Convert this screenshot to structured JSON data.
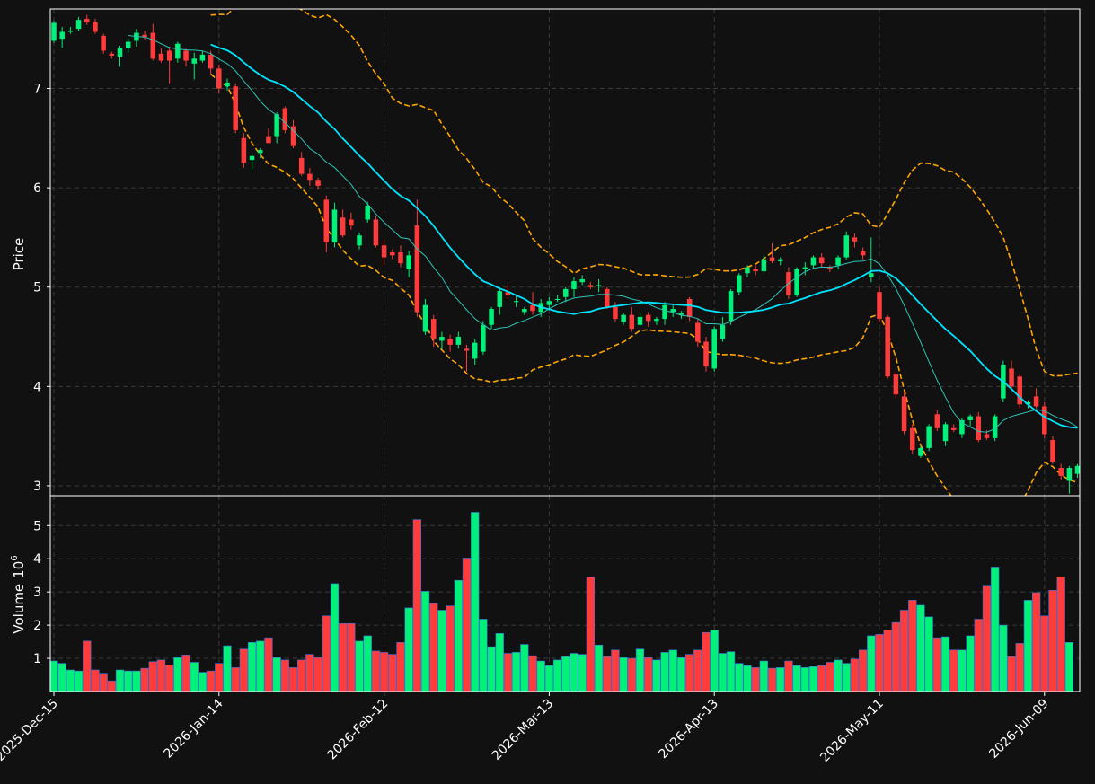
{
  "colors": {
    "background": "#111111",
    "up": "#00f07a",
    "down": "#ff3c3c",
    "sma_slow": "#00e5ff",
    "sma_fast": "#2ec4b6",
    "bollinger": "#ffa500",
    "grid": "#3a3a3a",
    "text": "#ffffff"
  },
  "chart_data": [
    {
      "type": "candlestick",
      "panel": "price",
      "ylabel": "Price",
      "ylim": [
        2.9,
        7.8
      ],
      "yticks": [
        3,
        4,
        5,
        6,
        7
      ],
      "grid": true,
      "x_tick_labels": [
        "2025-Dec-15",
        "2026-Jan-14",
        "2026-Feb-12",
        "2026-Mar-13",
        "2026-Apr-13",
        "2026-May-11",
        "2026-Jun-09"
      ],
      "x_tick_indices": [
        0,
        20,
        40,
        60,
        80,
        100,
        120
      ],
      "candles": [
        [
          7.48,
          7.68,
          7.46,
          7.66
        ],
        [
          7.5,
          7.62,
          7.41,
          7.57
        ],
        [
          7.57,
          7.62,
          7.55,
          7.58
        ],
        [
          7.6,
          7.72,
          7.58,
          7.69
        ],
        [
          7.7,
          7.74,
          7.64,
          7.67
        ],
        [
          7.67,
          7.7,
          7.55,
          7.57
        ],
        [
          7.53,
          7.55,
          7.35,
          7.38
        ],
        [
          7.35,
          7.37,
          7.3,
          7.33
        ],
        [
          7.32,
          7.43,
          7.22,
          7.41
        ],
        [
          7.41,
          7.5,
          7.36,
          7.47
        ],
        [
          7.48,
          7.6,
          7.42,
          7.56
        ],
        [
          7.54,
          7.58,
          7.49,
          7.52
        ],
        [
          7.56,
          7.65,
          7.28,
          7.3
        ],
        [
          7.35,
          7.4,
          7.26,
          7.28
        ],
        [
          7.38,
          7.42,
          7.05,
          7.28
        ],
        [
          7.3,
          7.47,
          7.26,
          7.45
        ],
        [
          7.38,
          7.4,
          7.22,
          7.28
        ],
        [
          7.25,
          7.36,
          7.09,
          7.3
        ],
        [
          7.28,
          7.38,
          7.26,
          7.34
        ],
        [
          7.34,
          7.38,
          7.15,
          7.2
        ],
        [
          7.2,
          7.24,
          6.95,
          7.0
        ],
        [
          7.02,
          7.1,
          6.98,
          7.06
        ],
        [
          7.02,
          7.05,
          6.55,
          6.58
        ],
        [
          6.5,
          6.55,
          6.2,
          6.25
        ],
        [
          6.28,
          6.35,
          6.18,
          6.32
        ],
        [
          6.35,
          6.4,
          6.3,
          6.38
        ],
        [
          6.52,
          6.6,
          6.45,
          6.45
        ],
        [
          6.52,
          6.76,
          6.45,
          6.74
        ],
        [
          6.8,
          6.82,
          6.55,
          6.58
        ],
        [
          6.62,
          6.68,
          6.4,
          6.42
        ],
        [
          6.3,
          6.36,
          6.12,
          6.14
        ],
        [
          6.14,
          6.2,
          6.02,
          6.08
        ],
        [
          6.08,
          6.1,
          5.98,
          6.02
        ],
        [
          5.88,
          5.92,
          5.35,
          5.45
        ],
        [
          5.45,
          5.85,
          5.4,
          5.78
        ],
        [
          5.7,
          5.78,
          5.5,
          5.52
        ],
        [
          5.68,
          5.75,
          5.58,
          5.62
        ],
        [
          5.42,
          5.55,
          5.38,
          5.52
        ],
        [
          5.68,
          5.86,
          5.65,
          5.82
        ],
        [
          5.68,
          5.72,
          5.4,
          5.42
        ],
        [
          5.42,
          5.48,
          5.22,
          5.3
        ],
        [
          5.35,
          5.38,
          5.28,
          5.32
        ],
        [
          5.35,
          5.42,
          5.2,
          5.24
        ],
        [
          5.18,
          5.36,
          5.1,
          5.32
        ],
        [
          5.62,
          5.88,
          4.7,
          4.75
        ],
        [
          4.55,
          4.88,
          4.52,
          4.82
        ],
        [
          4.68,
          4.72,
          4.4,
          4.48
        ],
        [
          4.46,
          4.55,
          4.38,
          4.5
        ],
        [
          4.48,
          4.52,
          4.35,
          4.42
        ],
        [
          4.42,
          4.55,
          4.38,
          4.5
        ],
        [
          4.38,
          4.42,
          4.15,
          4.36
        ],
        [
          4.28,
          4.48,
          4.22,
          4.44
        ],
        [
          4.35,
          4.66,
          4.32,
          4.62
        ],
        [
          4.62,
          4.8,
          4.58,
          4.78
        ],
        [
          4.8,
          5.0,
          4.72,
          4.96
        ],
        [
          4.95,
          5.02,
          4.88,
          4.92
        ],
        [
          4.85,
          4.92,
          4.8,
          4.86
        ],
        [
          4.75,
          4.8,
          4.72,
          4.78
        ],
        [
          4.82,
          4.95,
          4.72,
          4.76
        ],
        [
          4.75,
          4.88,
          4.7,
          4.84
        ],
        [
          4.82,
          4.9,
          4.78,
          4.86
        ],
        [
          4.88,
          4.92,
          4.85,
          4.88
        ],
        [
          4.9,
          5.0,
          4.85,
          4.98
        ],
        [
          4.98,
          5.1,
          4.9,
          5.06
        ],
        [
          5.05,
          5.12,
          5.02,
          5.08
        ],
        [
          5.02,
          5.05,
          4.98,
          5.0
        ],
        [
          5.02,
          5.08,
          4.95,
          5.02
        ],
        [
          4.98,
          5.0,
          4.78,
          4.8
        ],
        [
          4.8,
          4.85,
          4.65,
          4.68
        ],
        [
          4.65,
          4.74,
          4.62,
          4.72
        ],
        [
          4.72,
          4.8,
          4.55,
          4.58
        ],
        [
          4.62,
          4.75,
          4.6,
          4.7
        ],
        [
          4.72,
          4.75,
          4.6,
          4.66
        ],
        [
          4.66,
          4.7,
          4.62,
          4.68
        ],
        [
          4.68,
          4.85,
          4.62,
          4.82
        ],
        [
          4.75,
          4.82,
          4.7,
          4.78
        ],
        [
          4.72,
          4.76,
          4.68,
          4.74
        ],
        [
          4.88,
          4.9,
          4.66,
          4.7
        ],
        [
          4.64,
          4.68,
          4.4,
          4.45
        ],
        [
          4.45,
          4.5,
          4.15,
          4.2
        ],
        [
          4.18,
          4.6,
          4.15,
          4.58
        ],
        [
          4.48,
          4.7,
          4.45,
          4.62
        ],
        [
          4.66,
          4.98,
          4.62,
          4.96
        ],
        [
          4.95,
          5.14,
          4.92,
          5.12
        ],
        [
          5.14,
          5.22,
          5.1,
          5.2
        ],
        [
          5.18,
          5.22,
          5.12,
          5.16
        ],
        [
          5.16,
          5.32,
          5.14,
          5.28
        ],
        [
          5.3,
          5.44,
          5.24,
          5.26
        ],
        [
          5.26,
          5.3,
          5.22,
          5.28
        ],
        [
          5.15,
          5.2,
          4.88,
          4.92
        ],
        [
          4.92,
          5.2,
          4.9,
          5.18
        ],
        [
          5.18,
          5.25,
          5.12,
          5.2
        ],
        [
          5.22,
          5.32,
          5.18,
          5.3
        ],
        [
          5.3,
          5.34,
          5.2,
          5.24
        ],
        [
          5.2,
          5.22,
          5.15,
          5.18
        ],
        [
          5.22,
          5.32,
          5.18,
          5.3
        ],
        [
          5.3,
          5.56,
          5.28,
          5.52
        ],
        [
          5.5,
          5.54,
          5.4,
          5.46
        ],
        [
          5.36,
          5.4,
          5.28,
          5.32
        ],
        [
          5.1,
          5.5,
          5.05,
          5.14
        ],
        [
          4.95,
          5.0,
          4.65,
          4.68
        ],
        [
          4.7,
          4.72,
          4.08,
          4.1
        ],
        [
          4.12,
          4.15,
          3.88,
          3.92
        ],
        [
          3.9,
          3.94,
          3.52,
          3.55
        ],
        [
          3.58,
          3.62,
          3.32,
          3.36
        ],
        [
          3.3,
          3.4,
          3.28,
          3.38
        ],
        [
          3.38,
          3.62,
          3.35,
          3.6
        ],
        [
          3.72,
          3.76,
          3.55,
          3.58
        ],
        [
          3.45,
          3.64,
          3.4,
          3.62
        ],
        [
          3.58,
          3.62,
          3.54,
          3.56
        ],
        [
          3.52,
          3.68,
          3.48,
          3.66
        ],
        [
          3.66,
          3.72,
          3.6,
          3.7
        ],
        [
          3.7,
          3.74,
          3.44,
          3.46
        ],
        [
          3.52,
          3.56,
          3.46,
          3.48
        ],
        [
          3.48,
          3.72,
          3.45,
          3.7
        ],
        [
          3.88,
          4.26,
          3.84,
          4.22
        ],
        [
          4.18,
          4.26,
          3.96,
          4.0
        ],
        [
          4.1,
          4.12,
          3.78,
          3.82
        ],
        [
          3.82,
          3.86,
          3.78,
          3.84
        ],
        [
          3.9,
          3.98,
          3.78,
          3.8
        ],
        [
          3.8,
          3.84,
          3.48,
          3.52
        ],
        [
          3.46,
          3.5,
          3.22,
          3.24
        ],
        [
          3.18,
          3.22,
          3.06,
          3.1
        ],
        [
          3.05,
          3.2,
          2.92,
          3.18
        ],
        [
          3.12,
          3.22,
          3.08,
          3.2
        ]
      ]
    },
    {
      "type": "bar",
      "panel": "volume",
      "ylabel": "Volume",
      "yscale_label": "10^6",
      "ylim": [
        0,
        5.9
      ],
      "yticks": [
        1,
        2,
        3,
        4,
        5
      ],
      "grid": true,
      "values": [
        0.92,
        0.85,
        0.65,
        0.62,
        1.52,
        0.65,
        0.55,
        0.32,
        0.65,
        0.62,
        0.62,
        0.7,
        0.9,
        0.95,
        0.8,
        1.02,
        1.1,
        0.88,
        0.58,
        0.62,
        0.85,
        1.38,
        0.72,
        1.28,
        1.48,
        1.52,
        1.62,
        1.02,
        0.95,
        0.72,
        0.95,
        1.12,
        1.02,
        2.28,
        3.25,
        2.05,
        2.05,
        1.52,
        1.68,
        1.22,
        1.18,
        1.12,
        1.48,
        2.52,
        5.18,
        3.02,
        2.65,
        2.45,
        2.58,
        3.35,
        4.02,
        5.4,
        2.18,
        1.35,
        1.75,
        1.15,
        1.18,
        1.42,
        1.08,
        0.92,
        0.78,
        0.95,
        1.05,
        1.15,
        1.12,
        3.45,
        1.4,
        1.05,
        1.25,
        1.02,
        1.0,
        1.28,
        1.02,
        0.95,
        1.18,
        1.25,
        1.02,
        1.12,
        1.25,
        1.78,
        1.85,
        1.15,
        1.2,
        0.85,
        0.78,
        0.72,
        0.92,
        0.7,
        0.72,
        0.92,
        0.78,
        0.72,
        0.75,
        0.78,
        0.88,
        0.95,
        0.85,
        0.98,
        1.25,
        1.68,
        1.72,
        1.85,
        2.08,
        2.45,
        2.75,
        2.6,
        2.25,
        1.62,
        1.65,
        1.25,
        1.25,
        1.68,
        2.18,
        3.2,
        3.75,
        2.0,
        1.05,
        1.45,
        2.75,
        2.98,
        2.28,
        3.05,
        3.45,
        1.48
      ]
    }
  ]
}
